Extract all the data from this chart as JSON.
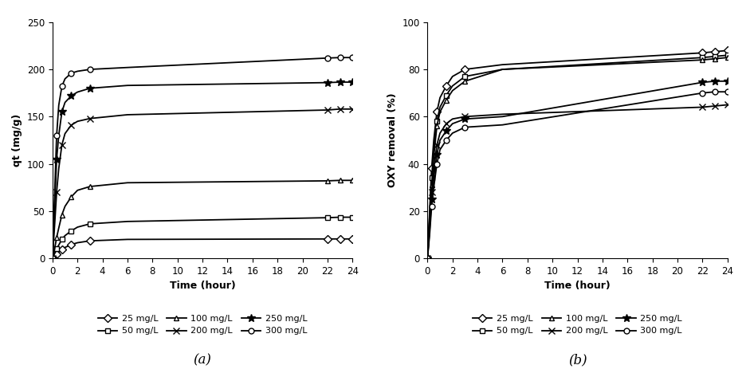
{
  "time_points": [
    0,
    0.17,
    0.33,
    0.5,
    0.75,
    1.0,
    1.5,
    2.0,
    3.0,
    6.0,
    22.0,
    23.0,
    24.0
  ],
  "series_a": {
    "25 mg/L": [
      0,
      2.0,
      4.0,
      6.5,
      9.0,
      11.5,
      14.5,
      16.5,
      18.5,
      20.0,
      20.5,
      20.5,
      20.5
    ],
    "50 mg/L": [
      0,
      5.0,
      10.0,
      14.0,
      20.0,
      24.0,
      29.0,
      33.0,
      36.5,
      39.0,
      43.0,
      43.5,
      43.5
    ],
    "100 mg/L": [
      0,
      10.0,
      22.0,
      32.0,
      46.0,
      55.0,
      65.0,
      72.0,
      76.0,
      80.0,
      82.0,
      82.5,
      82.5
    ],
    "200 mg/L": [
      0,
      35.0,
      70.0,
      95.0,
      120.0,
      132.0,
      141.0,
      145.0,
      148.0,
      152.0,
      157.0,
      158.0,
      158.0
    ],
    "250 mg/L": [
      0,
      55.0,
      105.0,
      130.0,
      155.0,
      165.0,
      172.0,
      176.0,
      180.0,
      183.0,
      186.0,
      186.5,
      186.5
    ],
    "300 mg/L": [
      0,
      68.0,
      130.0,
      162.0,
      182.0,
      190.0,
      196.0,
      198.0,
      200.0,
      202.0,
      212.0,
      212.5,
      212.5
    ]
  },
  "series_b": {
    "25 mg/L": [
      0,
      20.0,
      38.0,
      50.0,
      62.0,
      68.0,
      73.0,
      77.0,
      80.0,
      82.0,
      87.0,
      87.5,
      88.0
    ],
    "50 mg/L": [
      0,
      18.0,
      34.0,
      46.0,
      58.0,
      64.0,
      69.0,
      73.0,
      77.0,
      80.0,
      85.0,
      85.5,
      86.0
    ],
    "100 mg/L": [
      0,
      16.0,
      31.0,
      43.0,
      56.0,
      62.0,
      67.0,
      71.0,
      75.0,
      80.0,
      84.0,
      84.5,
      85.0
    ],
    "200 mg/L": [
      0,
      14.0,
      28.0,
      38.0,
      48.0,
      53.0,
      57.0,
      59.0,
      60.0,
      61.0,
      64.0,
      64.5,
      65.0
    ],
    "250 mg/L": [
      0,
      12.0,
      25.0,
      34.0,
      44.0,
      50.0,
      54.0,
      57.0,
      59.0,
      60.0,
      74.5,
      75.0,
      75.0
    ],
    "300 mg/L": [
      0,
      10.0,
      22.0,
      30.0,
      40.0,
      46.0,
      50.0,
      53.0,
      55.5,
      56.5,
      70.0,
      70.5,
      70.5
    ]
  },
  "markers": {
    "25 mg/L": {
      "marker": "D",
      "ms": 5
    },
    "50 mg/L": {
      "marker": "s",
      "ms": 5
    },
    "100 mg/L": {
      "marker": "^",
      "ms": 5
    },
    "200 mg/L": {
      "marker": "x",
      "ms": 6
    },
    "250 mg/L": {
      "marker": "*",
      "ms": 7
    },
    "300 mg/L": {
      "marker": "o",
      "ms": 5
    }
  },
  "ylabel_a": "qt (mg/g)",
  "ylabel_b": "OXY removal (%)",
  "xlabel": "Time (hour)",
  "ylim_a": [
    0,
    250
  ],
  "ylim_b": [
    0,
    100
  ],
  "xlim": [
    0,
    24
  ],
  "label_a": "(a)",
  "label_b": "(b)",
  "xticks": [
    0,
    2,
    4,
    6,
    8,
    10,
    12,
    14,
    16,
    18,
    20,
    22,
    24
  ],
  "yticks_a": [
    0,
    50,
    100,
    150,
    200,
    250
  ],
  "yticks_b": [
    0,
    20,
    40,
    60,
    80,
    100
  ],
  "linewidth": 1.3,
  "legend_order": [
    "25 mg/L",
    "50 mg/L",
    "100 mg/L",
    "200 mg/L",
    "250 mg/L",
    "300 mg/L"
  ]
}
